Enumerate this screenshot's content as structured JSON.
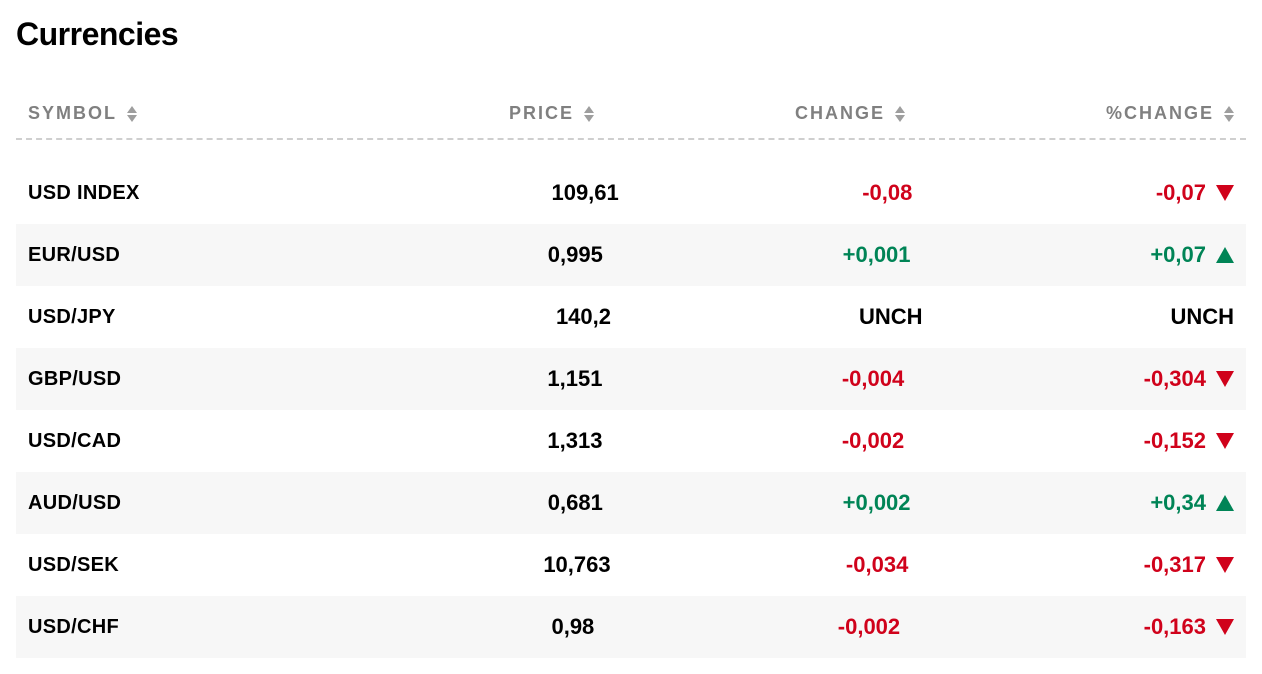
{
  "title": "Currencies",
  "colors": {
    "negative": "#d0021b",
    "positive": "#008456",
    "unchanged": "#000000",
    "header_text": "#808080",
    "row_alt_bg": "#f7f7f7",
    "divider": "#cfcfcf",
    "sort_arrow": "#9e9e9e",
    "background": "#ffffff"
  },
  "columns": [
    {
      "key": "symbol",
      "label": "SYMBOL"
    },
    {
      "key": "price",
      "label": "PRICE"
    },
    {
      "key": "change",
      "label": "CHANGE"
    },
    {
      "key": "pchange",
      "label": "%CHANGE"
    }
  ],
  "rows": [
    {
      "symbol": "USD INDEX",
      "price": "109,61",
      "change": "-0,08",
      "change_dir": "neg",
      "pchange": "-0,07",
      "pchange_dir": "neg",
      "trend": "down"
    },
    {
      "symbol": "EUR/USD",
      "price": "0,995",
      "change": "+0,001",
      "change_dir": "pos",
      "pchange": "+0,07",
      "pchange_dir": "pos",
      "trend": "up"
    },
    {
      "symbol": "USD/JPY",
      "price": "140,2",
      "change": "UNCH",
      "change_dir": "unch",
      "pchange": "UNCH",
      "pchange_dir": "unch",
      "trend": "none"
    },
    {
      "symbol": "GBP/USD",
      "price": "1,151",
      "change": "-0,004",
      "change_dir": "neg",
      "pchange": "-0,304",
      "pchange_dir": "neg",
      "trend": "down"
    },
    {
      "symbol": "USD/CAD",
      "price": "1,313",
      "change": "-0,002",
      "change_dir": "neg",
      "pchange": "-0,152",
      "pchange_dir": "neg",
      "trend": "down"
    },
    {
      "symbol": "AUD/USD",
      "price": "0,681",
      "change": "+0,002",
      "change_dir": "pos",
      "pchange": "+0,34",
      "pchange_dir": "pos",
      "trend": "up"
    },
    {
      "symbol": "USD/SEK",
      "price": "10,763",
      "change": "-0,034",
      "change_dir": "neg",
      "pchange": "-0,317",
      "pchange_dir": "neg",
      "trend": "down"
    },
    {
      "symbol": "USD/CHF",
      "price": "0,98",
      "change": "-0,002",
      "change_dir": "neg",
      "pchange": "-0,163",
      "pchange_dir": "neg",
      "trend": "down"
    }
  ]
}
